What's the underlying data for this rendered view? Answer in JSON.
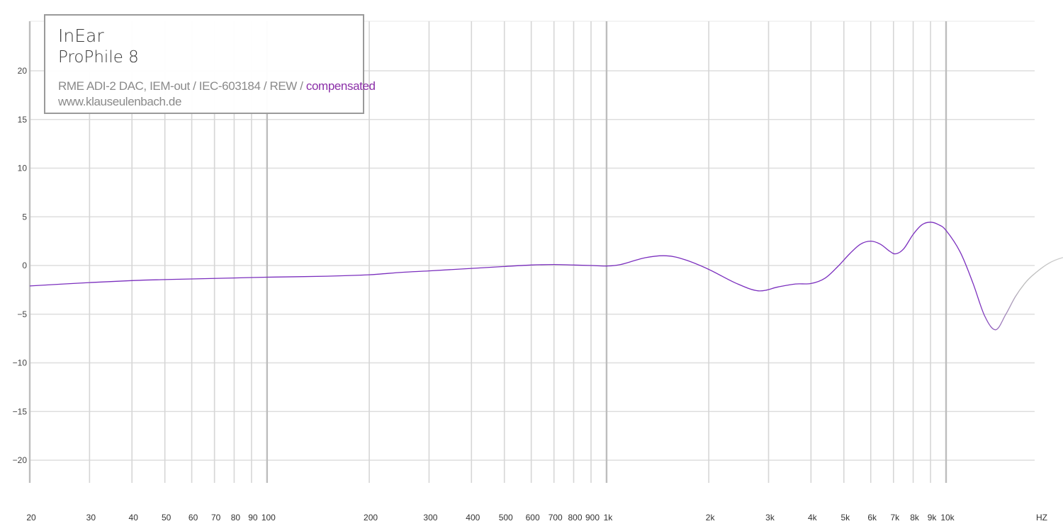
{
  "chart_data": {
    "type": "line",
    "legend": {
      "brand": "InEar",
      "model": "ProPhile 8",
      "setup": "RME ADI-2 DAC, IEM-out / IEC-603184 / REW /",
      "compensation": "compensated",
      "website": "www.klauseulenbach.de",
      "position": "top-left"
    },
    "x_unit_label": "HZ",
    "x_scale": "log",
    "xlim": [
      20,
      24000
    ],
    "ylim": [
      -22,
      25
    ],
    "grid": true,
    "x_ticks": [
      {
        "value": 20,
        "label": "20"
      },
      {
        "value": 30,
        "label": "30"
      },
      {
        "value": 40,
        "label": "40"
      },
      {
        "value": 50,
        "label": "50"
      },
      {
        "value": 60,
        "label": "60"
      },
      {
        "value": 70,
        "label": "70"
      },
      {
        "value": 80,
        "label": "80"
      },
      {
        "value": 90,
        "label": "90"
      },
      {
        "value": 100,
        "label": "100"
      },
      {
        "value": 200,
        "label": "200"
      },
      {
        "value": 300,
        "label": "300"
      },
      {
        "value": 400,
        "label": "400"
      },
      {
        "value": 500,
        "label": "500"
      },
      {
        "value": 600,
        "label": "600"
      },
      {
        "value": 700,
        "label": "700"
      },
      {
        "value": 800,
        "label": "800"
      },
      {
        "value": 900,
        "label": "900"
      },
      {
        "value": 1000,
        "label": "1k"
      },
      {
        "value": 2000,
        "label": "2k"
      },
      {
        "value": 3000,
        "label": "3k"
      },
      {
        "value": 4000,
        "label": "4k"
      },
      {
        "value": 5000,
        "label": "5k"
      },
      {
        "value": 6000,
        "label": "6k"
      },
      {
        "value": 7000,
        "label": "7k"
      },
      {
        "value": 8000,
        "label": "8k"
      },
      {
        "value": 9000,
        "label": "9k"
      },
      {
        "value": 10000,
        "label": "10k"
      }
    ],
    "y_ticks": [
      {
        "value": 20,
        "label": "20"
      },
      {
        "value": 15,
        "label": "15"
      },
      {
        "value": 10,
        "label": "10"
      },
      {
        "value": 5,
        "label": "5"
      },
      {
        "value": 0,
        "label": "0"
      },
      {
        "value": -5,
        "label": "-5"
      },
      {
        "value": -10,
        "label": "-10"
      },
      {
        "value": -15,
        "label": "-15"
      },
      {
        "value": -20,
        "label": "-20"
      }
    ],
    "series": [
      {
        "color": "#7b2fbe",
        "fade_color": "#b8b8b8",
        "x": [
          20,
          30,
          40,
          50,
          60,
          80,
          100,
          150,
          200,
          250,
          300,
          400,
          500,
          600,
          700,
          800,
          900,
          1000,
          1100,
          1300,
          1500,
          1700,
          2000,
          2400,
          2800,
          3200,
          3600,
          4000,
          4400,
          4800,
          5200,
          5600,
          6000,
          6400,
          6800,
          7100,
          7500,
          8000,
          8500,
          9000,
          9500,
          10000,
          11000,
          12000,
          13000,
          14000,
          15000,
          16000,
          17000,
          18000,
          20000,
          22000,
          24000
        ],
        "y": [
          -2.1,
          -1.75,
          -1.55,
          -1.45,
          -1.38,
          -1.28,
          -1.2,
          -1.1,
          -0.95,
          -0.7,
          -0.55,
          -0.3,
          -0.1,
          0.05,
          0.1,
          0.05,
          0.0,
          -0.05,
          0.1,
          0.8,
          1.0,
          0.6,
          -0.4,
          -1.8,
          -2.6,
          -2.2,
          -1.9,
          -1.85,
          -1.3,
          -0.1,
          1.2,
          2.2,
          2.5,
          2.2,
          1.5,
          1.2,
          1.7,
          3.2,
          4.2,
          4.45,
          4.2,
          3.6,
          1.4,
          -1.8,
          -5.2,
          -6.6,
          -5.0,
          -3.2,
          -1.9,
          -1.0,
          0.2,
          0.8,
          1.0
        ],
        "fade_from_x": 12500
      }
    ]
  }
}
